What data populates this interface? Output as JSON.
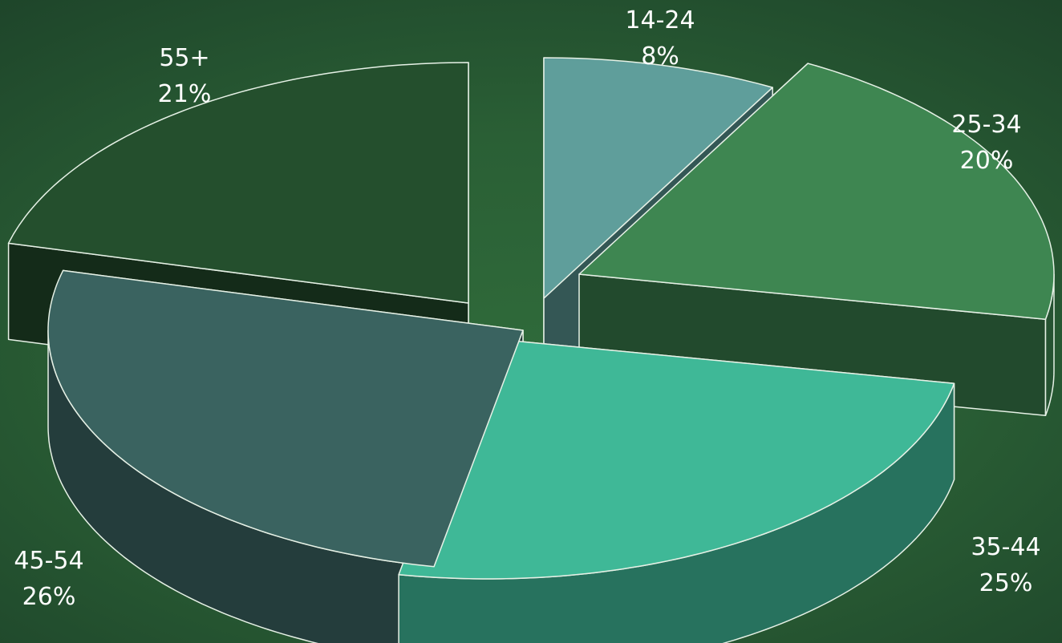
{
  "chart_data": {
    "type": "pie",
    "style": "3d-exploded",
    "legend": "none",
    "title": "",
    "colors": {
      "14-24": "#5f9e9b",
      "25-34": "#3e8651",
      "35-44": "#3fb897",
      "45-54": "#3a6360",
      "55+": "#244f2d"
    },
    "slices": [
      {
        "category": "14-24",
        "value": 8,
        "label": "8%"
      },
      {
        "category": "25-34",
        "value": 20,
        "label": "20%"
      },
      {
        "category": "35-44",
        "value": 25,
        "label": "25%"
      },
      {
        "category": "45-54",
        "value": 26,
        "label": "26%"
      },
      {
        "category": "55+",
        "value": 21,
        "label": "21%"
      }
    ]
  }
}
